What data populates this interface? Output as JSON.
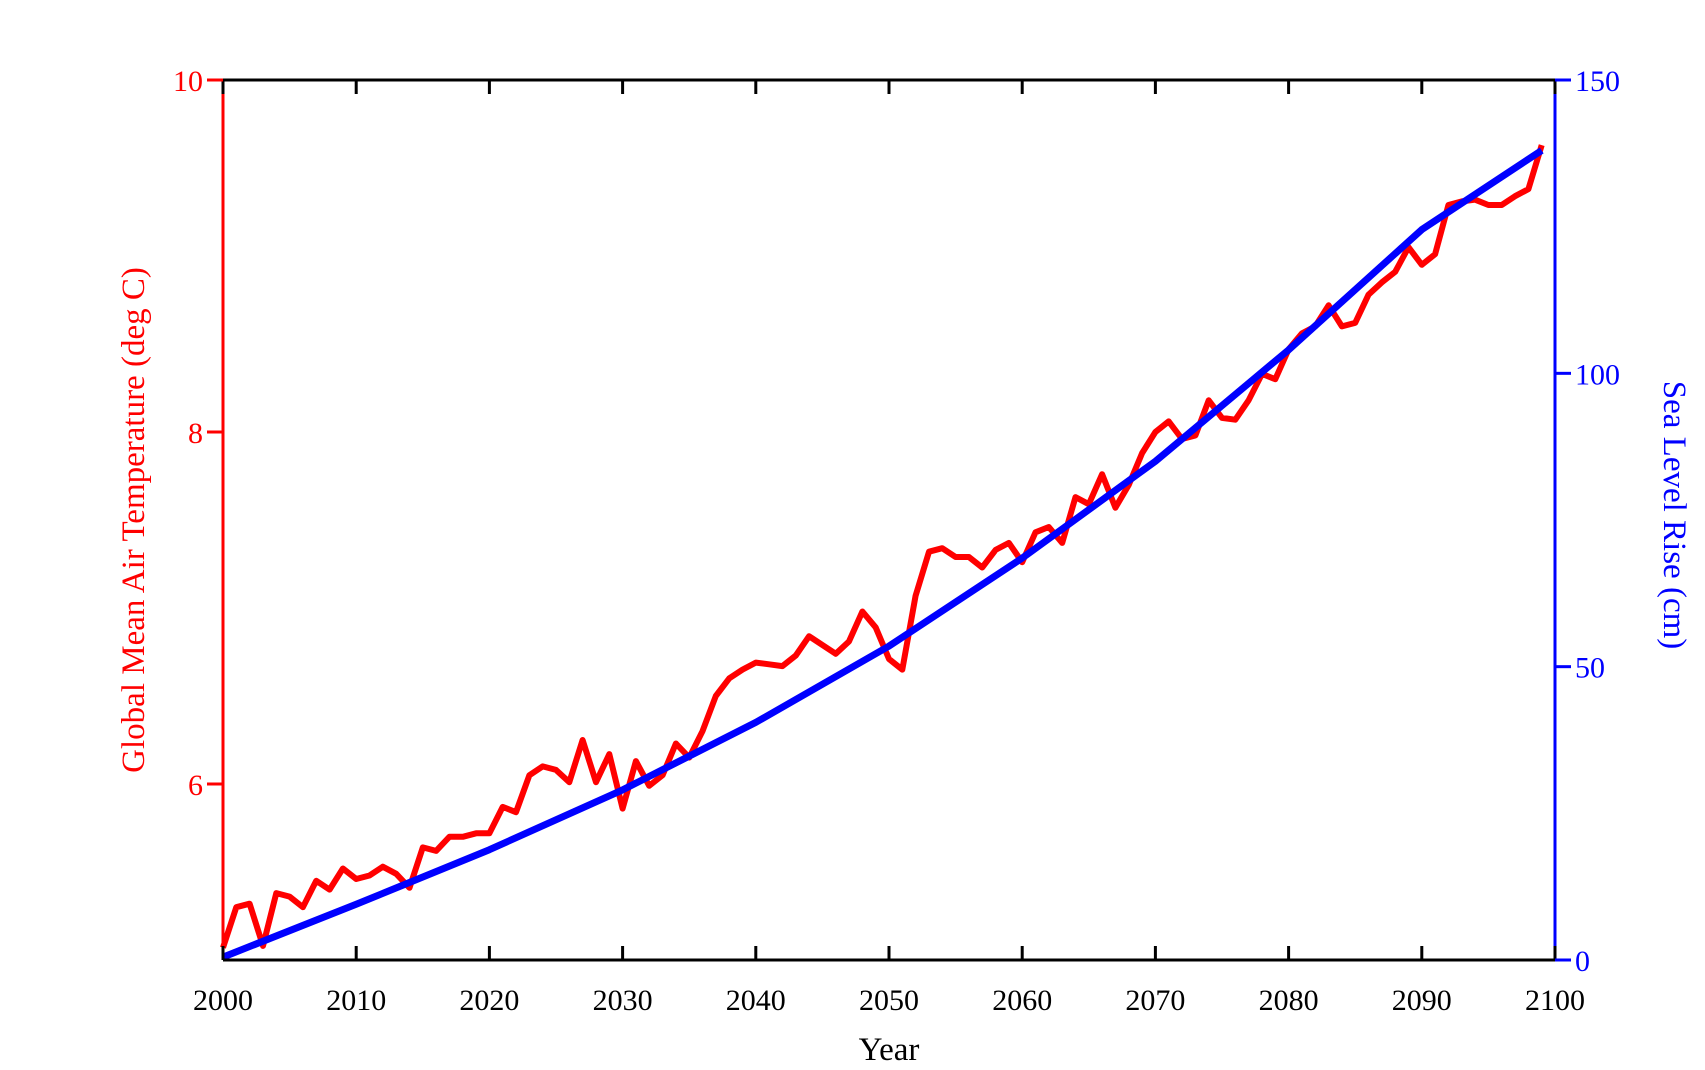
{
  "chart_data": {
    "type": "line",
    "xlabel": "Year",
    "ylabel_left": "Global Mean Air Temperature (deg C)",
    "ylabel_right": "Sea Level Rise (cm)",
    "xlim": [
      2000,
      2100
    ],
    "ylim_left": [
      5.0,
      10.0
    ],
    "ylim_right": [
      0,
      150
    ],
    "xticks": [
      2000,
      2010,
      2020,
      2030,
      2040,
      2050,
      2060,
      2070,
      2080,
      2090,
      2100
    ],
    "yticks_left": [
      6,
      8,
      10
    ],
    "yticks_right": [
      0,
      50,
      100,
      150
    ],
    "grid": false,
    "colors": {
      "left_axis": "#ff0000",
      "right_axis": "#0000ff",
      "frame": "#000000"
    },
    "series": [
      {
        "axis": "left",
        "color": "#ff0000",
        "x": [
          2000,
          2001,
          2002,
          2003,
          2004,
          2005,
          2006,
          2007,
          2008,
          2009,
          2010,
          2011,
          2012,
          2013,
          2014,
          2015,
          2016,
          2017,
          2018,
          2019,
          2020,
          2021,
          2022,
          2023,
          2024,
          2025,
          2026,
          2027,
          2028,
          2029,
          2030,
          2031,
          2032,
          2033,
          2034,
          2035,
          2036,
          2037,
          2038,
          2039,
          2040,
          2041,
          2042,
          2043,
          2044,
          2045,
          2046,
          2047,
          2048,
          2049,
          2050,
          2051,
          2052,
          2053,
          2054,
          2055,
          2056,
          2057,
          2058,
          2059,
          2060,
          2061,
          2062,
          2063,
          2064,
          2065,
          2066,
          2067,
          2068,
          2069,
          2070,
          2071,
          2072,
          2073,
          2074,
          2075,
          2076,
          2077,
          2078,
          2079,
          2080,
          2081,
          2082,
          2083,
          2084,
          2085,
          2086,
          2087,
          2088,
          2089,
          2090,
          2091,
          2092,
          2093,
          2094,
          2095,
          2096,
          2097,
          2098,
          2099
        ],
        "y": [
          5.07,
          5.3,
          5.32,
          5.08,
          5.38,
          5.36,
          5.3,
          5.45,
          5.4,
          5.52,
          5.46,
          5.48,
          5.53,
          5.49,
          5.41,
          5.64,
          5.62,
          5.7,
          5.7,
          5.72,
          5.72,
          5.87,
          5.84,
          6.05,
          6.1,
          6.08,
          6.01,
          6.25,
          6.01,
          6.17,
          5.86,
          6.13,
          5.99,
          6.05,
          6.23,
          6.15,
          6.3,
          6.5,
          6.6,
          6.65,
          6.69,
          6.68,
          6.67,
          6.73,
          6.84,
          6.79,
          6.74,
          6.81,
          6.98,
          6.89,
          6.71,
          6.65,
          7.07,
          7.32,
          7.34,
          7.29,
          7.29,
          7.23,
          7.33,
          7.37,
          7.26,
          7.43,
          7.46,
          7.37,
          7.63,
          7.59,
          7.76,
          7.57,
          7.7,
          7.88,
          8.0,
          8.06,
          7.96,
          7.98,
          8.18,
          8.08,
          8.07,
          8.18,
          8.33,
          8.3,
          8.47,
          8.56,
          8.6,
          8.72,
          8.6,
          8.62,
          8.78,
          8.85,
          8.91,
          9.05,
          8.95,
          9.01,
          9.29,
          9.31,
          9.32,
          9.29,
          9.29,
          9.34,
          9.38,
          9.63
        ]
      },
      {
        "axis": "right",
        "color": "#0000ff",
        "x": [
          2000,
          2010,
          2020,
          2030,
          2040,
          2050,
          2060,
          2070,
          2080,
          2090,
          2099
        ],
        "y": [
          0.5,
          9.5,
          18.8,
          29.0,
          40.5,
          53.5,
          68.5,
          85.0,
          104.0,
          124.5,
          138.0
        ]
      }
    ]
  }
}
